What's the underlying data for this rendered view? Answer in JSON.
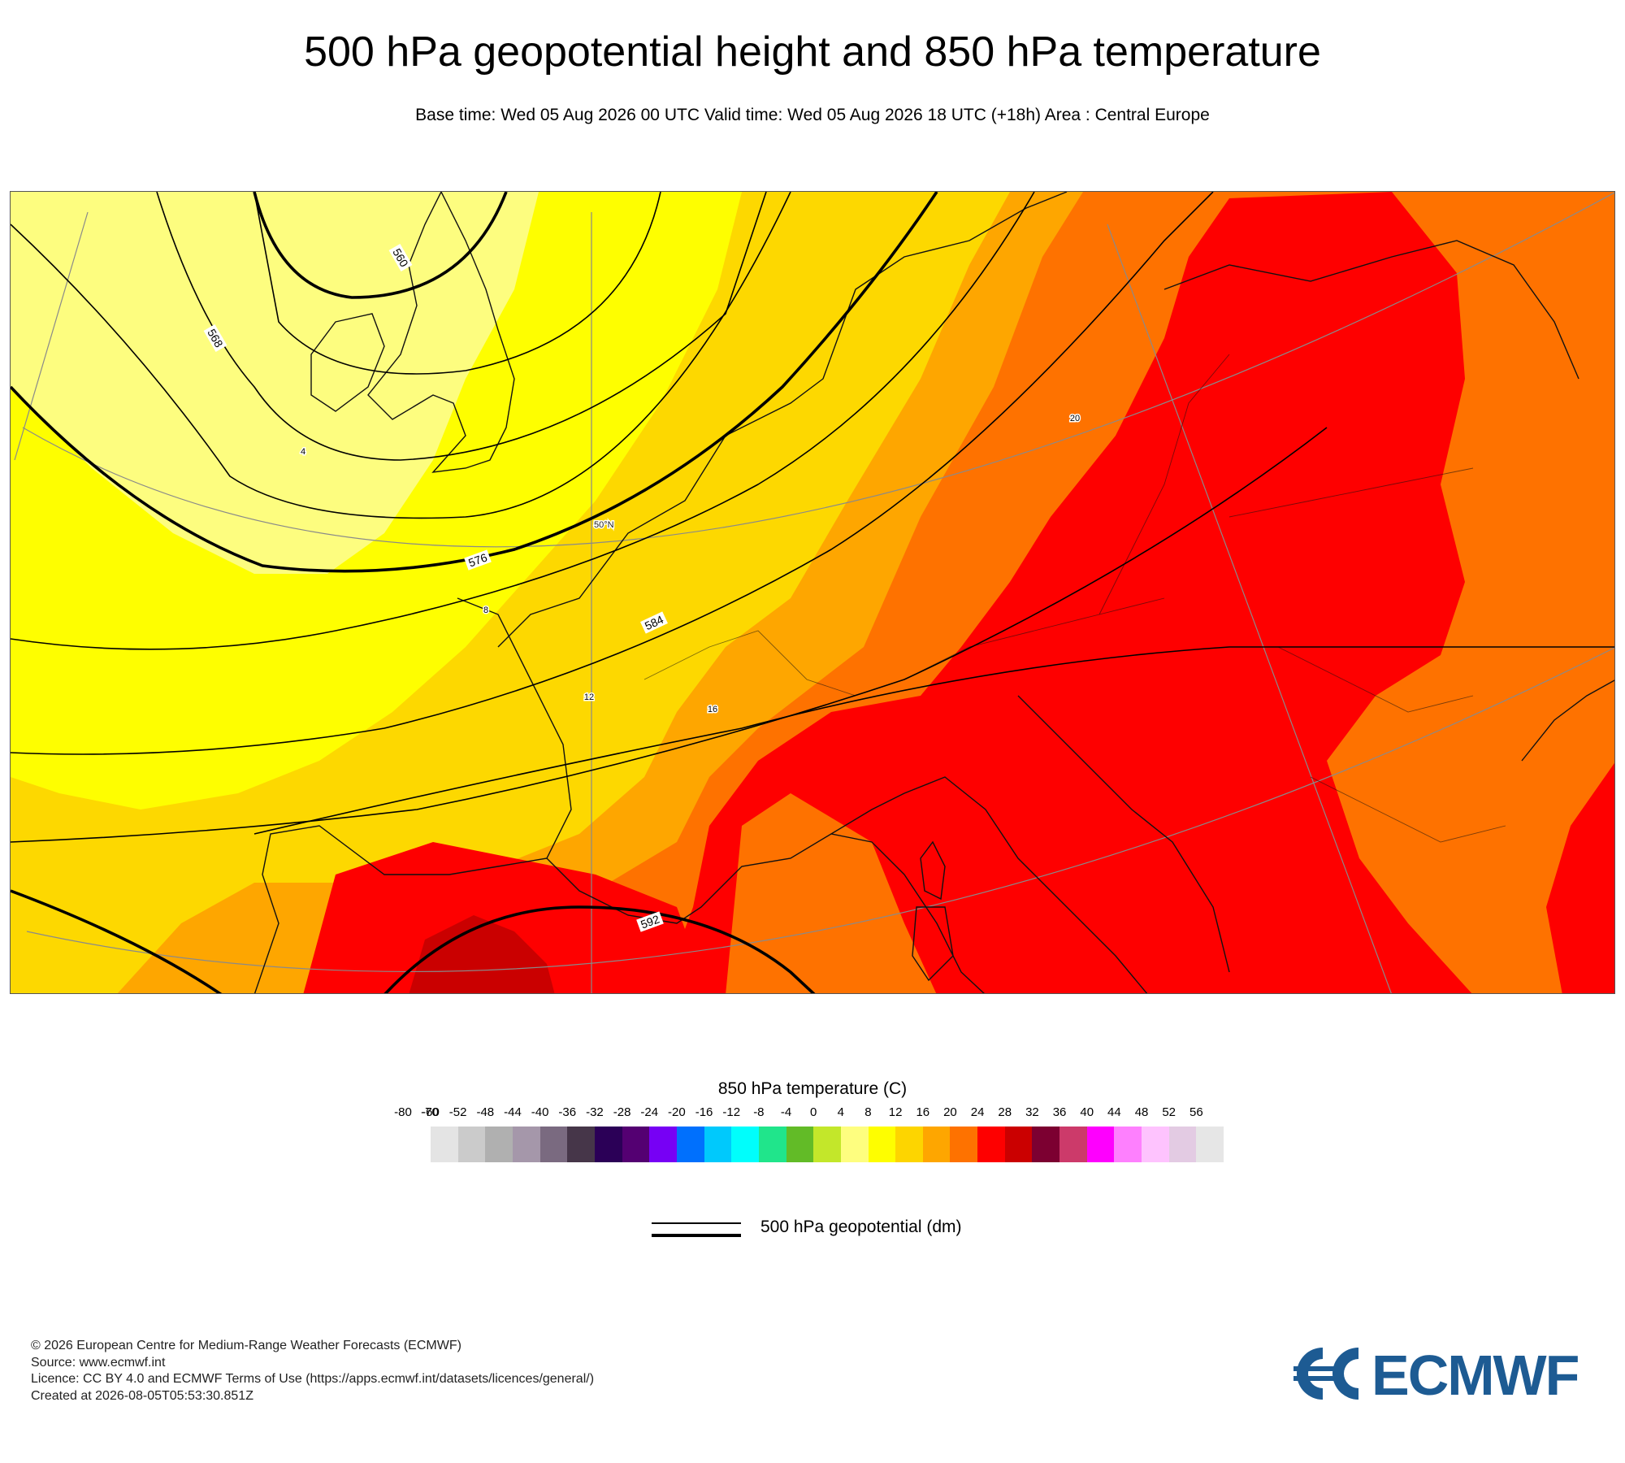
{
  "title": "500 hPa geopotential height and 850 hPa temperature",
  "subtitle": "Base time: Wed 05 Aug 2026 00 UTC Valid time: Wed 05 Aug 2026 18 UTC (+18h) Area : Central Europe",
  "map": {
    "contour_labels": [
      "560",
      "568",
      "576",
      "584",
      "592"
    ],
    "isotherm_labels": [
      "4",
      "8",
      "12",
      "16",
      "20"
    ],
    "grid_label": "50°N",
    "colors": {
      "t4": "#fdfd7f",
      "t8": "#fefe00",
      "t12": "#fdd800",
      "t16": "#fea600",
      "t20": "#fe7200",
      "t24": "#fe0000",
      "t28": "#ca0000",
      "coast": "#111111",
      "contour": "#000000",
      "grid": "#8a8a8a"
    }
  },
  "colorbar": {
    "title": "850 hPa temperature (C)",
    "ticks": [
      "-80",
      "-70",
      "-60",
      "-52",
      "-48",
      "-44",
      "-40",
      "-36",
      "-32",
      "-28",
      "-24",
      "-20",
      "-16",
      "-12",
      "-8",
      "-4",
      "0",
      "4",
      "8",
      "12",
      "16",
      "20",
      "24",
      "28",
      "32",
      "36",
      "40",
      "44",
      "48",
      "52",
      "56"
    ],
    "colors": [
      "#e4e4e4",
      "#cbcbcb",
      "#b0b0b0",
      "#a597aa",
      "#7a6a80",
      "#463649",
      "#2b0057",
      "#540072",
      "#7700f5",
      "#0070fd",
      "#00c9fc",
      "#00fefc",
      "#20e58b",
      "#62bb27",
      "#c3e72a",
      "#fefe7f",
      "#fefe00",
      "#fdd500",
      "#fea600",
      "#fe7200",
      "#fe0000",
      "#cb0000",
      "#7c0031",
      "#cc3a6a",
      "#fe00fe",
      "#fe80fe",
      "#fec3fe",
      "#e3cbe3",
      "#e6e6e6"
    ]
  },
  "legend": {
    "geopotential_label": "500 hPa geopotential (dm)"
  },
  "footer": {
    "line1": "© 2026 European Centre for Medium-Range Weather Forecasts (ECMWF)",
    "line2": "Source: www.ecmwf.int",
    "line3": "Licence: CC BY 4.0 and ECMWF Terms of Use (https://apps.ecmwf.int/datasets/licences/general/)",
    "line4": "Created at 2026-08-05T05:53:30.851Z"
  },
  "logo": {
    "text": "ECMWF",
    "color": "#1d5b93"
  }
}
